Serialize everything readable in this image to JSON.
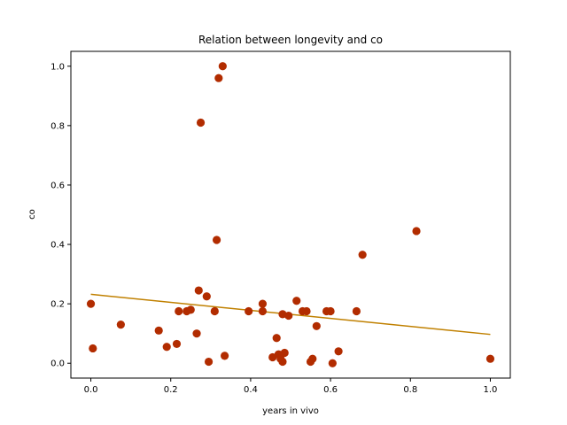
{
  "chart_data": {
    "type": "scatter",
    "title": "Relation between longevity and co",
    "xlabel": "years in vivo",
    "ylabel": "co",
    "xlim": [
      -0.05,
      1.05
    ],
    "ylim": [
      -0.05,
      1.05
    ],
    "xticks": [
      "0.0",
      "0.2",
      "0.4",
      "0.6",
      "0.8",
      "1.0"
    ],
    "yticks": [
      "0.0",
      "0.2",
      "0.4",
      "0.6",
      "0.8",
      "1.0"
    ],
    "grid": false,
    "colors": {
      "points": "#b22c00",
      "trend": "#c08000"
    },
    "points": [
      [
        0.0,
        0.2
      ],
      [
        0.005,
        0.05
      ],
      [
        0.075,
        0.13
      ],
      [
        0.17,
        0.11
      ],
      [
        0.19,
        0.055
      ],
      [
        0.215,
        0.065
      ],
      [
        0.22,
        0.175
      ],
      [
        0.24,
        0.175
      ],
      [
        0.25,
        0.18
      ],
      [
        0.265,
        0.1
      ],
      [
        0.27,
        0.245
      ],
      [
        0.275,
        0.81
      ],
      [
        0.29,
        0.225
      ],
      [
        0.295,
        0.005
      ],
      [
        0.31,
        0.175
      ],
      [
        0.315,
        0.415
      ],
      [
        0.32,
        0.96
      ],
      [
        0.33,
        1.0
      ],
      [
        0.335,
        0.025
      ],
      [
        0.395,
        0.175
      ],
      [
        0.43,
        0.175
      ],
      [
        0.43,
        0.2
      ],
      [
        0.455,
        0.02
      ],
      [
        0.465,
        0.085
      ],
      [
        0.47,
        0.03
      ],
      [
        0.475,
        0.015
      ],
      [
        0.48,
        0.005
      ],
      [
        0.48,
        0.165
      ],
      [
        0.485,
        0.035
      ],
      [
        0.495,
        0.16
      ],
      [
        0.515,
        0.21
      ],
      [
        0.53,
        0.175
      ],
      [
        0.54,
        0.175
      ],
      [
        0.55,
        0.005
      ],
      [
        0.555,
        0.015
      ],
      [
        0.565,
        0.125
      ],
      [
        0.59,
        0.175
      ],
      [
        0.6,
        0.175
      ],
      [
        0.605,
        0.0
      ],
      [
        0.62,
        0.04
      ],
      [
        0.665,
        0.175
      ],
      [
        0.68,
        0.365
      ],
      [
        0.815,
        0.445
      ],
      [
        1.0,
        0.015
      ]
    ],
    "trend_line": [
      [
        0.0,
        0.232
      ],
      [
        1.0,
        0.097
      ]
    ]
  }
}
